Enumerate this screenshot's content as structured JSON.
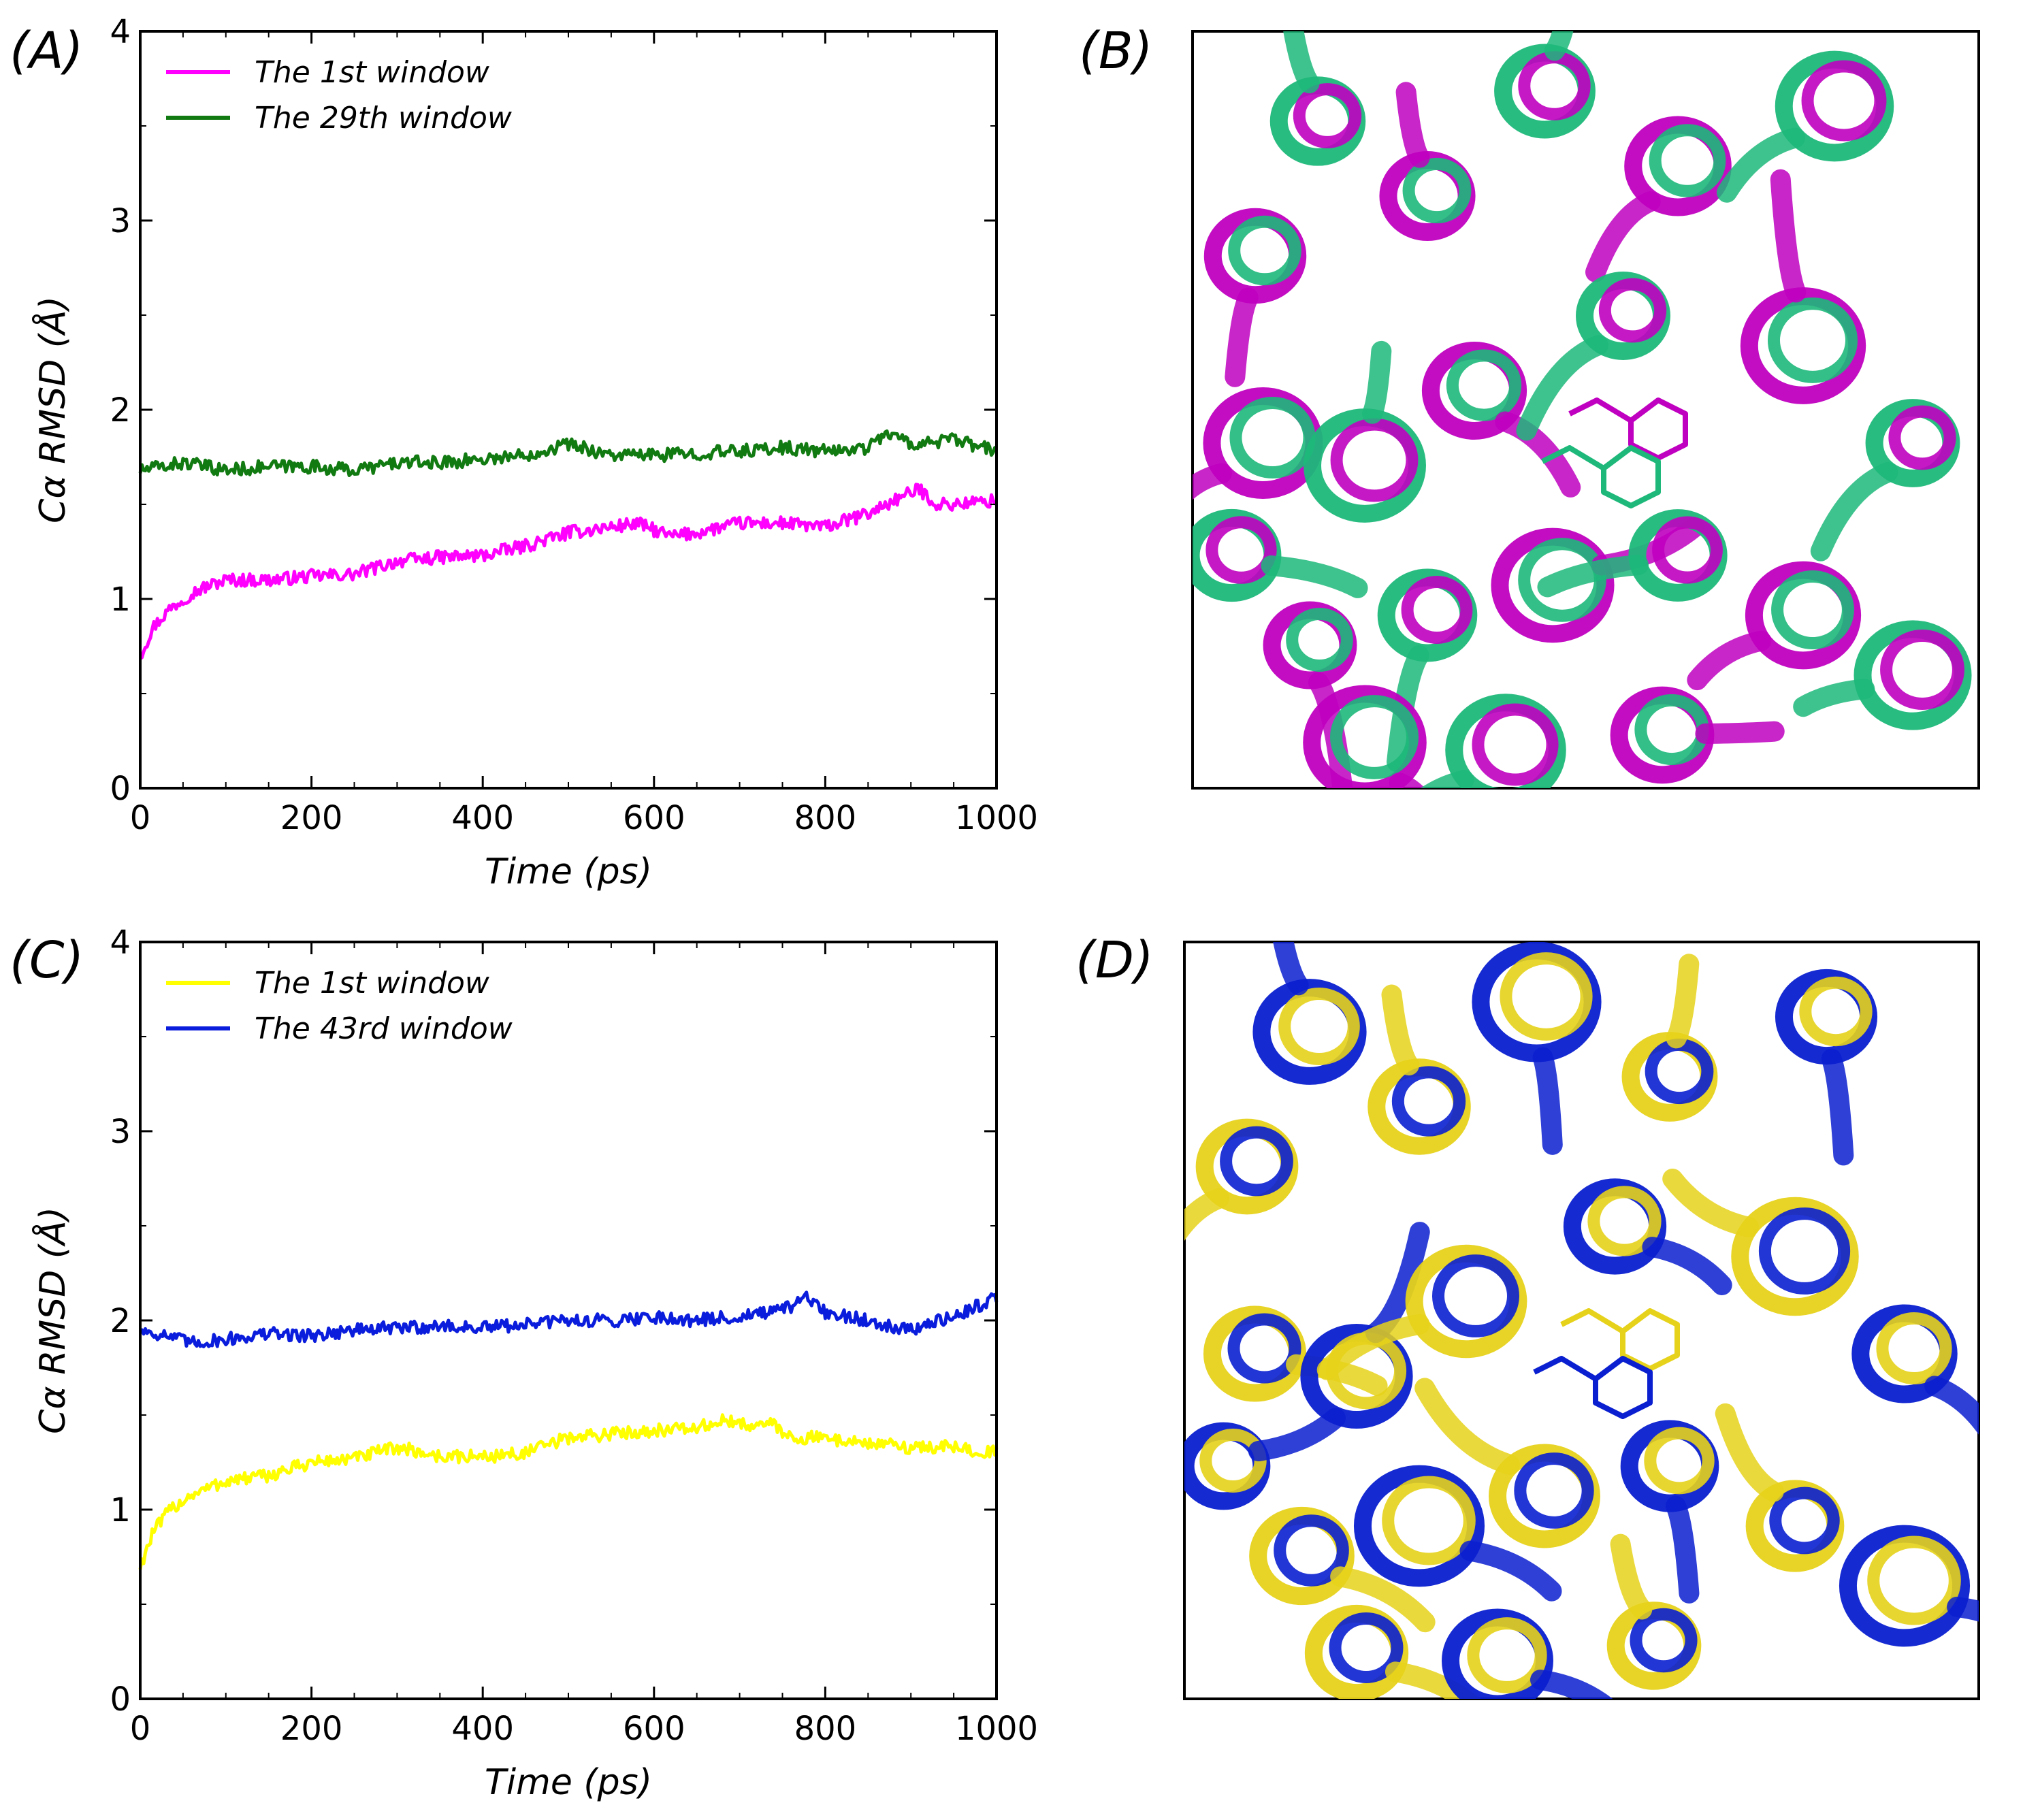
{
  "panels": {
    "a": {
      "label": "(A)"
    },
    "b": {
      "label": "(B)"
    },
    "c": {
      "label": "(C)"
    },
    "d": {
      "label": "(D)"
    }
  },
  "structures": {
    "b": {
      "colors": [
        "#c000c0",
        "#1db87a"
      ]
    },
    "d": {
      "colors": [
        "#e6d21a",
        "#0a1fd0"
      ]
    }
  },
  "chart_data": [
    {
      "type": "line",
      "panel": "A",
      "title": "",
      "xlabel": "Time (ps)",
      "ylabel": "Cα RMSD (Å)",
      "xlim": [
        0,
        1000
      ],
      "ylim": [
        0,
        4
      ],
      "xticks": [
        0,
        200,
        400,
        600,
        800,
        1000
      ],
      "yticks": [
        0,
        1,
        2,
        3,
        4
      ],
      "xtick_labels": [
        "0",
        "200",
        "400",
        "600",
        "800",
        "1000"
      ],
      "ytick_labels": [
        "0",
        "1",
        "2",
        "3",
        "4"
      ],
      "legend_position": "upper-left",
      "grid": false,
      "series": [
        {
          "name": "The 1st window",
          "color": "#ff00ff",
          "x": [
            0,
            15,
            35,
            60,
            80,
            100,
            150,
            200,
            250,
            300,
            350,
            400,
            450,
            500,
            550,
            580,
            620,
            650,
            700,
            750,
            800,
            850,
            880,
            910,
            930,
            950,
            1000
          ],
          "y": [
            0.7,
            0.85,
            0.95,
            1.03,
            1.07,
            1.1,
            1.1,
            1.12,
            1.13,
            1.2,
            1.22,
            1.23,
            1.28,
            1.35,
            1.38,
            1.4,
            1.33,
            1.35,
            1.4,
            1.4,
            1.38,
            1.45,
            1.52,
            1.58,
            1.5,
            1.5,
            1.52
          ]
        },
        {
          "name": "The 29th window",
          "color": "#117a11",
          "x": [
            0,
            50,
            100,
            150,
            200,
            250,
            300,
            350,
            400,
            450,
            500,
            550,
            600,
            650,
            700,
            750,
            800,
            850,
            870,
            900,
            950,
            1000
          ],
          "y": [
            1.68,
            1.72,
            1.68,
            1.7,
            1.7,
            1.68,
            1.72,
            1.72,
            1.74,
            1.76,
            1.82,
            1.76,
            1.76,
            1.77,
            1.78,
            1.8,
            1.78,
            1.8,
            1.88,
            1.82,
            1.84,
            1.78
          ]
        }
      ]
    },
    {
      "type": "line",
      "panel": "C",
      "title": "",
      "xlabel": "Time (ps)",
      "ylabel": "Cα RMSD (Å)",
      "xlim": [
        0,
        1000
      ],
      "ylim": [
        0,
        4
      ],
      "xticks": [
        0,
        200,
        400,
        600,
        800,
        1000
      ],
      "yticks": [
        0,
        1,
        2,
        3,
        4
      ],
      "xtick_labels": [
        "0",
        "200",
        "400",
        "600",
        "800",
        "1000"
      ],
      "ytick_labels": [
        "0",
        "1",
        "2",
        "3",
        "4"
      ],
      "legend_position": "upper-left",
      "grid": false,
      "series": [
        {
          "name": "The 1st window",
          "color": "#ffff00",
          "x": [
            0,
            15,
            35,
            60,
            100,
            150,
            200,
            250,
            300,
            350,
            400,
            450,
            500,
            550,
            600,
            650,
            680,
            700,
            740,
            760,
            800,
            850,
            900,
            950,
            1000
          ],
          "y": [
            0.7,
            0.88,
            1.0,
            1.08,
            1.15,
            1.18,
            1.25,
            1.27,
            1.33,
            1.28,
            1.28,
            1.3,
            1.38,
            1.4,
            1.42,
            1.43,
            1.47,
            1.45,
            1.45,
            1.38,
            1.38,
            1.35,
            1.33,
            1.33,
            1.3
          ]
        },
        {
          "name": "The 43rd window",
          "color": "#0a1cdc",
          "x": [
            0,
            30,
            60,
            100,
            150,
            200,
            250,
            300,
            350,
            400,
            450,
            500,
            550,
            600,
            650,
            700,
            750,
            780,
            800,
            850,
            900,
            950,
            1000
          ],
          "y": [
            1.95,
            1.92,
            1.88,
            1.9,
            1.93,
            1.92,
            1.95,
            1.96,
            1.97,
            1.96,
            1.98,
            2.0,
            2.0,
            2.02,
            2.0,
            2.02,
            2.05,
            2.12,
            2.04,
            2.0,
            1.95,
            2.02,
            2.12
          ]
        }
      ]
    }
  ]
}
